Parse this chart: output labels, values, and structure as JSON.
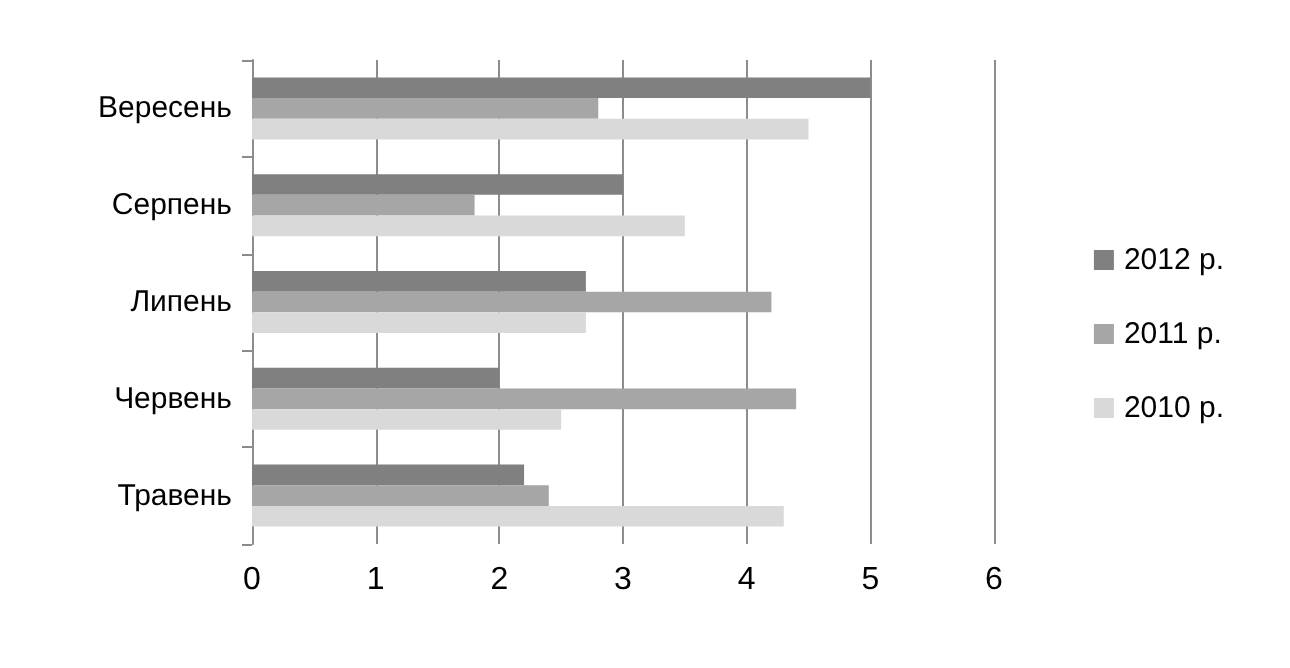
{
  "chart_data": {
    "type": "bar",
    "orientation": "horizontal",
    "categories": [
      "Вересень",
      "Серпень",
      "Липень",
      "Червень",
      "Травень"
    ],
    "series": [
      {
        "name": "2012 р.",
        "color": "#808080",
        "values": [
          5,
          3,
          2.7,
          2,
          2.2
        ]
      },
      {
        "name": "2011 р.",
        "color": "#a6a6a6",
        "values": [
          2.8,
          1.8,
          4.2,
          4.4,
          2.4
        ]
      },
      {
        "name": "2010 р.",
        "color": "#d9d9d9",
        "values": [
          4.5,
          3.5,
          2.7,
          2.5,
          4.3
        ]
      }
    ],
    "xlim": [
      0,
      6
    ],
    "xticks": [
      0,
      1,
      2,
      3,
      4,
      5,
      6
    ],
    "grid": "x",
    "legend": "right"
  }
}
